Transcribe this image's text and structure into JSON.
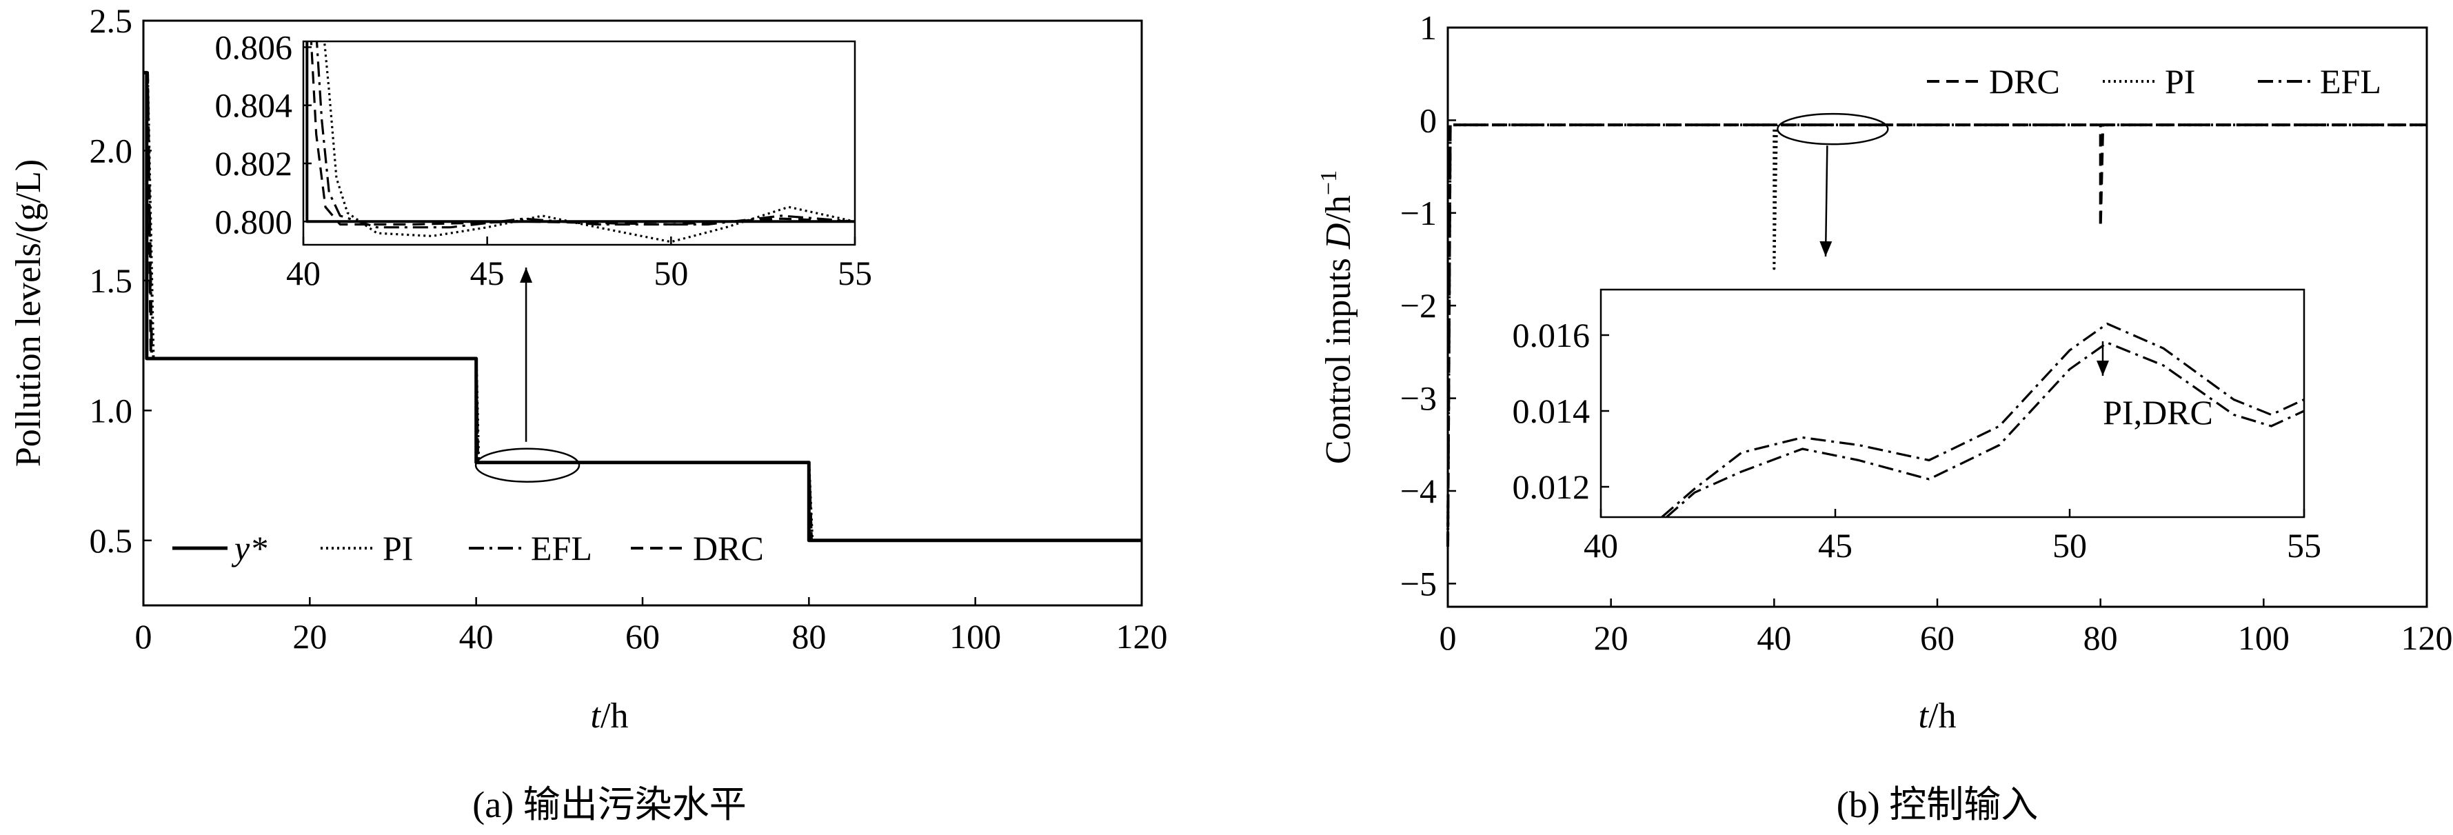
{
  "colors": {
    "line": "#000000",
    "background": "#ffffff"
  },
  "chart_data": [
    {
      "type": "line",
      "caption": "(a) 输出污染水平",
      "xlabel_italic": "t",
      "xlabel_unit": "/h",
      "ylabel": "Pollution levels/(g/L)",
      "xlim": [
        0,
        120
      ],
      "ylim": [
        0.25,
        2.5
      ],
      "xticks": [
        0,
        20,
        40,
        60,
        80,
        100,
        120
      ],
      "yticks": [
        0.5,
        1.0,
        1.5,
        2.0,
        2.5
      ],
      "ytick_labels": [
        "0.5",
        "1.0",
        "1.5",
        "2.0",
        "2.5"
      ],
      "grid": false,
      "legend_position": "bottom-left",
      "legend": [
        {
          "label": "y*",
          "style": "solid"
        },
        {
          "label": "PI",
          "style": "dotted"
        },
        {
          "label": "EFL",
          "style": "dashdot"
        },
        {
          "label": "DRC",
          "style": "dashed"
        }
      ],
      "series": [
        {
          "name": "y*",
          "style": "solid",
          "points": [
            [
              0,
              2.3
            ],
            [
              0.4,
              2.3
            ],
            [
              0.4,
              1.2
            ],
            [
              40,
              1.2
            ],
            [
              40,
              0.8
            ],
            [
              80,
              0.8
            ],
            [
              80,
              0.5
            ],
            [
              120,
              0.5
            ]
          ]
        },
        {
          "name": "PI",
          "style": "dotted",
          "points": [
            [
              0,
              2.3
            ],
            [
              0.5,
              2.3
            ],
            [
              1.2,
              1.2
            ],
            [
              40,
              1.2
            ],
            [
              40.3,
              0.8
            ],
            [
              80,
              0.8
            ],
            [
              80.4,
              0.5
            ],
            [
              120,
              0.5
            ]
          ]
        },
        {
          "name": "EFL",
          "style": "dashdot",
          "points": [
            [
              0,
              2.3
            ],
            [
              0.5,
              2.3
            ],
            [
              1.0,
              1.2
            ],
            [
              40,
              1.2
            ],
            [
              40.2,
              0.8
            ],
            [
              80,
              0.8
            ],
            [
              80.3,
              0.5
            ],
            [
              120,
              0.5
            ]
          ]
        },
        {
          "name": "DRC",
          "style": "dashed",
          "points": [
            [
              0,
              2.3
            ],
            [
              0.5,
              2.3
            ],
            [
              0.9,
              1.2
            ],
            [
              40,
              1.2
            ],
            [
              40.2,
              0.8
            ],
            [
              80,
              0.8
            ],
            [
              80.3,
              0.5
            ],
            [
              120,
              0.5
            ]
          ]
        }
      ],
      "zoom_marker": {
        "x": 46,
        "y": 0.8
      },
      "inset": {
        "xlim": [
          40,
          55
        ],
        "ylim": [
          0.7992,
          0.8062
        ],
        "xticks": [
          40,
          45,
          50,
          55
        ],
        "yticks": [
          0.8,
          0.802,
          0.804,
          0.806
        ],
        "ytick_labels": [
          "0.800",
          "0.802",
          "0.804",
          "0.806"
        ],
        "series": [
          {
            "name": "y*",
            "style": "solid",
            "points": [
              [
                40,
                0.8065
              ],
              [
                40.1,
                0.8065
              ],
              [
                40.1,
                0.8
              ],
              [
                55,
                0.8
              ]
            ]
          },
          {
            "name": "PI",
            "style": "dotted",
            "points": [
              [
                40.55,
                0.8065
              ],
              [
                40.7,
                0.8045
              ],
              [
                40.9,
                0.8015
              ],
              [
                41.2,
                0.8003
              ],
              [
                42,
                0.7996
              ],
              [
                43.5,
                0.7995
              ],
              [
                45,
                0.7998
              ],
              [
                46.5,
                0.8002
              ],
              [
                48,
                0.7998
              ],
              [
                50,
                0.7993
              ],
              [
                51.5,
                0.7998
              ],
              [
                53.2,
                0.8005
              ],
              [
                55,
                0.8
              ]
            ]
          },
          {
            "name": "EFL",
            "style": "dashdot",
            "points": [
              [
                40.35,
                0.8065
              ],
              [
                40.5,
                0.8035
              ],
              [
                40.7,
                0.801
              ],
              [
                41,
                0.8002
              ],
              [
                42,
                0.7998
              ],
              [
                44,
                0.7998
              ],
              [
                46,
                0.8001
              ],
              [
                48,
                0.7999
              ],
              [
                51,
                0.7999
              ],
              [
                53,
                0.8002
              ],
              [
                55,
                0.8
              ]
            ]
          },
          {
            "name": "DRC",
            "style": "dashed",
            "points": [
              [
                40.2,
                0.8065
              ],
              [
                40.35,
                0.803
              ],
              [
                40.6,
                0.8005
              ],
              [
                41,
                0.7999
              ],
              [
                43,
                0.7999
              ],
              [
                46,
                0.8
              ],
              [
                50,
                0.7999
              ],
              [
                53,
                0.8001
              ],
              [
                55,
                0.8
              ]
            ]
          }
        ]
      }
    },
    {
      "type": "line",
      "caption": "(b) 控制输入",
      "xlabel_italic": "t",
      "xlabel_unit": "/h",
      "ylabel_prefix": "Control inputs ",
      "ylabel_italic": "D",
      "ylabel_unit": "/h",
      "ylabel_sup": "−1",
      "xlim": [
        0,
        120
      ],
      "ylim": [
        -5.25,
        1.0
      ],
      "xticks": [
        0,
        20,
        40,
        60,
        80,
        100,
        120
      ],
      "yticks": [
        1,
        0,
        -1,
        -2,
        -3,
        -4,
        -5
      ],
      "ytick_labels": [
        "1",
        "0",
        "−1",
        "−2",
        "−3",
        "−4",
        "−5"
      ],
      "grid": false,
      "legend_position": "top-right",
      "legend": [
        {
          "label": "DRC",
          "style": "dashed"
        },
        {
          "label": "PI",
          "style": "dotted"
        },
        {
          "label": "EFL",
          "style": "dashdot"
        }
      ],
      "series": [
        {
          "name": "DRC",
          "style": "dashed",
          "points": [
            [
              0,
              -4.6
            ],
            [
              0.3,
              -0.05
            ],
            [
              80,
              -0.05
            ],
            [
              80,
              -1.15
            ],
            [
              80.3,
              -0.05
            ],
            [
              120,
              -0.05
            ]
          ]
        },
        {
          "name": "PI",
          "style": "dotted",
          "points": [
            [
              0,
              -4.6
            ],
            [
              0.3,
              -0.05
            ],
            [
              40,
              -0.05
            ],
            [
              40,
              -1.6
            ],
            [
              40.3,
              -0.05
            ],
            [
              120,
              -0.05
            ]
          ]
        },
        {
          "name": "EFL",
          "style": "dashdot",
          "points": [
            [
              0,
              -4.6
            ],
            [
              0.3,
              -0.05
            ],
            [
              120,
              -0.05
            ]
          ]
        }
      ],
      "zoom_marker": {
        "x": 46,
        "y": -0.05
      },
      "inset": {
        "xlim": [
          40,
          55
        ],
        "ylim": [
          0.0112,
          0.0172
        ],
        "xticks": [
          40,
          45,
          50,
          55
        ],
        "yticks": [
          0.012,
          0.014,
          0.016
        ],
        "ytick_labels": [
          "0.012",
          "0.014",
          "0.016"
        ],
        "annotation": "PI,DRC",
        "series": [
          {
            "name": "EFL",
            "style": "dashdot",
            "points": [
              [
                41.3,
                0.0112
              ],
              [
                42,
                0.01195
              ],
              [
                43,
                0.0129
              ],
              [
                44.3,
                0.0133
              ],
              [
                45.5,
                0.0131
              ],
              [
                47,
                0.0127
              ],
              [
                48.5,
                0.0136
              ],
              [
                50,
                0.0156
              ],
              [
                50.8,
                0.0163
              ],
              [
                52,
                0.01565
              ],
              [
                53.5,
                0.0143
              ],
              [
                54.3,
                0.0139
              ],
              [
                55,
                0.0143
              ]
            ]
          },
          {
            "name": "PI,DRC",
            "style": "dashdot",
            "points": [
              [
                41.4,
                0.0112
              ],
              [
                42,
                0.01185
              ],
              [
                43,
                0.0124
              ],
              [
                44.3,
                0.013
              ],
              [
                45.5,
                0.0127
              ],
              [
                47,
                0.0122
              ],
              [
                48.5,
                0.0131
              ],
              [
                50,
                0.0151
              ],
              [
                50.8,
                0.0158
              ],
              [
                52,
                0.0152
              ],
              [
                53.5,
                0.0139
              ],
              [
                54.3,
                0.0136
              ],
              [
                55,
                0.014
              ]
            ]
          }
        ]
      }
    }
  ]
}
